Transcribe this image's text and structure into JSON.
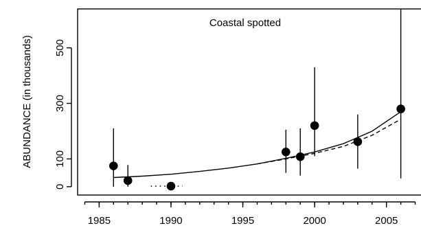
{
  "chart_data": {
    "type": "scatter",
    "title": "Coastal spotted",
    "xlabel": "",
    "ylabel": "ABUNDANCE  (in  thousands)",
    "xlim": [
      1983.5,
      2007.5
    ],
    "ylim": [
      -30,
      640
    ],
    "x_ticks": [
      1985,
      1990,
      1995,
      2000,
      2005
    ],
    "x_minor_ticks": [
      1984,
      1985,
      1986,
      1987,
      1988,
      1989,
      1990,
      1991,
      1992,
      1993,
      1994,
      1995,
      1996,
      1997,
      1998,
      1999,
      2000,
      2001,
      2002,
      2003,
      2004,
      2005,
      2006,
      2007
    ],
    "y_ticks": [
      0,
      100,
      300,
      500
    ],
    "grid": false,
    "points": [
      {
        "x": 1986,
        "y": 75,
        "lower": 0,
        "upper": 210
      },
      {
        "x": 1987,
        "y": 22,
        "lower": 0,
        "upper": 78
      },
      {
        "x": 1990,
        "y": 2,
        "lower": 0,
        "upper": 0
      },
      {
        "x": 1998,
        "y": 125,
        "lower": 50,
        "upper": 205
      },
      {
        "x": 1999,
        "y": 108,
        "lower": 40,
        "upper": 210
      },
      {
        "x": 2000,
        "y": 220,
        "lower": 110,
        "upper": 430
      },
      {
        "x": 2003,
        "y": 162,
        "lower": 65,
        "upper": 260
      },
      {
        "x": 2006,
        "y": 280,
        "lower": 30,
        "upper": 650
      }
    ],
    "fits": [
      {
        "style": "solid",
        "x": [
          1986,
          1988,
          1990,
          1992,
          1994,
          1996,
          1998,
          2000,
          2002,
          2004,
          2006
        ],
        "y": [
          33,
          38,
          45,
          55,
          67,
          82,
          102,
          125,
          155,
          200,
          270
        ]
      },
      {
        "style": "dashed",
        "x": [
          1996,
          1998,
          2000,
          2002,
          2004,
          2006
        ],
        "y": [
          82,
          100,
          120,
          145,
          185,
          243
        ]
      },
      {
        "style": "dotted",
        "x": [
          1988.6,
          1990.8
        ],
        "y": [
          2,
          2
        ]
      }
    ]
  }
}
